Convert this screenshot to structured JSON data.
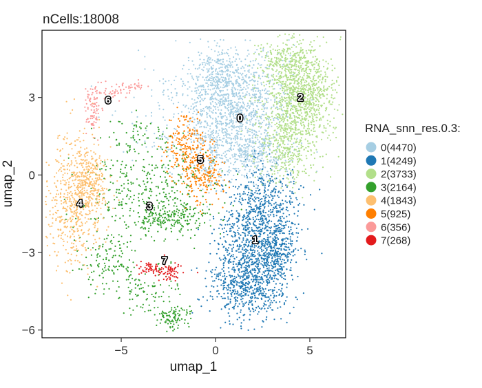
{
  "chart_data": {
    "type": "scatter",
    "title": "nCells:18008",
    "xlabel": "umap_1",
    "ylabel": "umap_2",
    "xlim": [
      -9.2,
      6.9
    ],
    "ylim": [
      -6.3,
      5.6
    ],
    "x_ticks": [
      -5,
      0,
      5
    ],
    "y_ticks": [
      -6,
      -3,
      0,
      3
    ],
    "grid": false,
    "legend": {
      "title": "RNA_snn_res.0.3:",
      "position": "right"
    },
    "series": [
      {
        "name": "0(4470)",
        "label": "0",
        "n": 4470,
        "color": "#A6CEE3",
        "center": [
          1.3,
          2.2
        ],
        "blobs": [
          {
            "cx": 1.2,
            "cy": 2.5,
            "sx": 1.3,
            "sy": 1.1,
            "w": 3
          },
          {
            "cx": 0.2,
            "cy": 3.7,
            "sx": 0.9,
            "sy": 0.6,
            "w": 1
          },
          {
            "cx": 2.0,
            "cy": 0.8,
            "sx": 0.9,
            "sy": 0.6,
            "w": 1
          },
          {
            "cx": -2.5,
            "cy": 2.3,
            "sx": 1.3,
            "sy": 1.0,
            "w": 0.35
          },
          {
            "cx": -0.3,
            "cy": 1.0,
            "sx": 0.6,
            "sy": 1.0,
            "w": 0.6
          }
        ]
      },
      {
        "name": "1(4249)",
        "label": "1",
        "n": 4249,
        "color": "#1F78B4",
        "center": [
          2.1,
          -2.5
        ],
        "blobs": [
          {
            "cx": 2.0,
            "cy": -3.4,
            "sx": 1.0,
            "sy": 1.0,
            "w": 3
          },
          {
            "cx": 2.4,
            "cy": -1.3,
            "sx": 1.0,
            "sy": 0.9,
            "w": 2
          },
          {
            "cx": 1.2,
            "cy": -4.3,
            "sx": 0.9,
            "sy": 0.6,
            "w": 1
          },
          {
            "cx": 3.4,
            "cy": -3.0,
            "sx": 0.5,
            "sy": 1.0,
            "w": 1
          }
        ]
      },
      {
        "name": "2(3733)",
        "label": "2",
        "n": 3733,
        "color": "#B2DF8A",
        "center": [
          4.5,
          3.0
        ],
        "blobs": [
          {
            "cx": 4.6,
            "cy": 3.1,
            "sx": 0.9,
            "sy": 0.8,
            "w": 3
          },
          {
            "cx": 3.9,
            "cy": 4.4,
            "sx": 0.8,
            "sy": 0.5,
            "w": 1
          },
          {
            "cx": 3.8,
            "cy": 1.2,
            "sx": 0.8,
            "sy": 0.8,
            "w": 1.5
          }
        ]
      },
      {
        "name": "3(2164)",
        "label": "3",
        "n": 2164,
        "color": "#33A02C",
        "center": [
          -3.5,
          -1.2
        ],
        "blobs": [
          {
            "cx": -3.5,
            "cy": -0.6,
            "sx": 1.7,
            "sy": 0.9,
            "w": 3
          },
          {
            "cx": -2.2,
            "cy": -1.6,
            "sx": 1.0,
            "sy": 0.3,
            "w": 1.5
          },
          {
            "cx": -5.6,
            "cy": -3.2,
            "sx": 0.8,
            "sy": 0.6,
            "w": 1
          },
          {
            "cx": -2.2,
            "cy": -5.5,
            "sx": 0.4,
            "sy": 0.25,
            "w": 0.8
          },
          {
            "cx": -3.8,
            "cy": -4.4,
            "sx": 0.9,
            "sy": 0.4,
            "w": 0.8
          },
          {
            "cx": -4.0,
            "cy": 1.5,
            "sx": 1.0,
            "sy": 0.4,
            "w": 0.5
          }
        ]
      },
      {
        "name": "4(1843)",
        "label": "4",
        "n": 1843,
        "color": "#FDBF6F",
        "center": [
          -7.2,
          -1.1
        ],
        "blobs": [
          {
            "cx": -7.5,
            "cy": -1.0,
            "sx": 0.8,
            "sy": 1.3,
            "w": 3
          },
          {
            "cx": -6.6,
            "cy": -0.2,
            "sx": 0.4,
            "sy": 0.6,
            "w": 1
          }
        ]
      },
      {
        "name": "5(925)",
        "label": "5",
        "n": 925,
        "color": "#FF7F00",
        "center": [
          -0.8,
          0.6
        ],
        "blobs": [
          {
            "cx": -1.5,
            "cy": 1.0,
            "sx": 0.6,
            "sy": 0.7,
            "w": 2
          },
          {
            "cx": -0.6,
            "cy": 0.0,
            "sx": 0.6,
            "sy": 0.5,
            "w": 1.5
          }
        ]
      },
      {
        "name": "6(356)",
        "label": "6",
        "n": 356,
        "color": "#FB9A99",
        "center": [
          -5.7,
          2.9
        ],
        "blobs": [
          {
            "cx": -6.5,
            "cy": 2.5,
            "sx": 0.2,
            "sy": 0.45,
            "w": 2
          },
          {
            "cx": -5.6,
            "cy": 3.2,
            "sx": 0.5,
            "sy": 0.15,
            "w": 1
          },
          {
            "cx": -4.4,
            "cy": 3.4,
            "sx": 0.4,
            "sy": 0.1,
            "w": 0.8
          }
        ]
      },
      {
        "name": "7(268)",
        "label": "7",
        "n": 268,
        "color": "#E31A1C",
        "center": [
          -2.7,
          -3.3
        ],
        "blobs": [
          {
            "cx": -3.0,
            "cy": -3.6,
            "sx": 0.6,
            "sy": 0.15,
            "w": 2
          },
          {
            "cx": -2.4,
            "cy": -3.8,
            "sx": 0.3,
            "sy": 0.15,
            "w": 1
          }
        ]
      }
    ]
  }
}
